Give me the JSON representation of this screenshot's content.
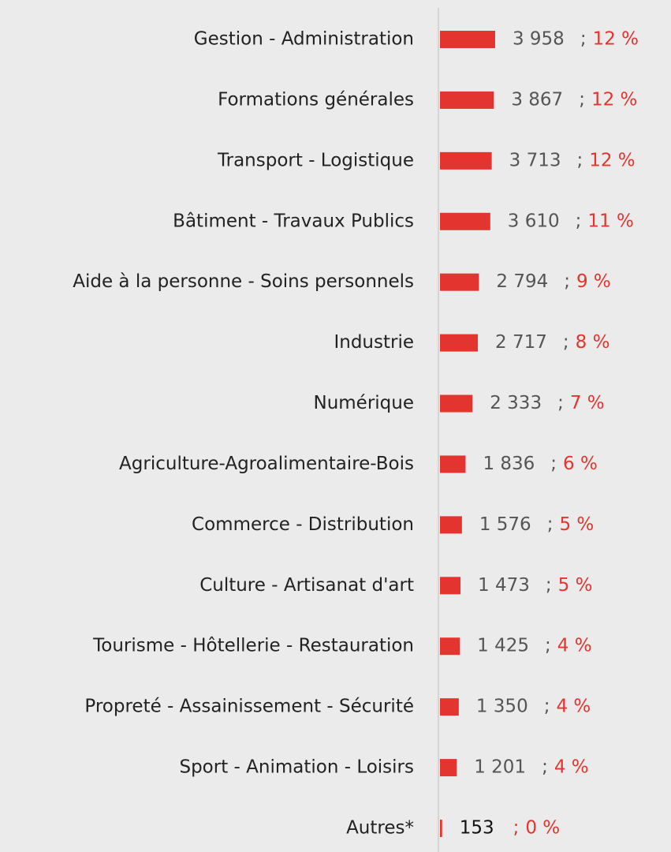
{
  "chart_data": {
    "type": "barh",
    "categories": [
      "Gestion - Administration",
      "Formations générales",
      "Transport - Logistique",
      "Bâtiment - Travaux Publics",
      "Aide à la personne - Soins personnels",
      "Industrie",
      "Numérique",
      "Agriculture-Agroalimentaire-Bois",
      "Commerce - Distribution",
      "Culture - Artisanat d'art",
      "Tourisme - Hôtellerie - Restauration",
      "Propreté - Assainissement - Sécurité",
      "Sport - Animation - Loisirs",
      "Autres*"
    ],
    "values": [
      3958,
      3867,
      3713,
      3610,
      2794,
      2717,
      2333,
      1836,
      1576,
      1473,
      1425,
      1350,
      1201,
      153
    ],
    "value_labels": [
      "3 958",
      "3 867",
      "3 713",
      "3 610",
      "2 794",
      "2 717",
      "2 333",
      "1 836",
      "1 576",
      "1 473",
      "1 425",
      "1 350",
      "1 201",
      "153"
    ],
    "separator": ";",
    "share_labels": [
      "12 %",
      "12 %",
      "12 %",
      "11 %",
      "9 %",
      "8 %",
      "7 %",
      "6 %",
      "5 %",
      "5 %",
      "4 %",
      "4 %",
      "4 %",
      "0 %"
    ],
    "color": "#e3342f",
    "xlim": [
      0,
      4000
    ]
  }
}
